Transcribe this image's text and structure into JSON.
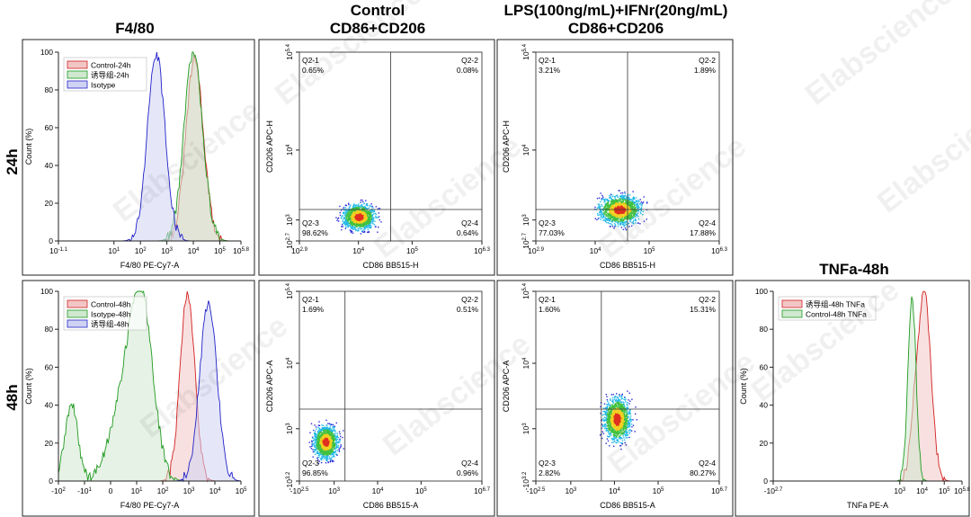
{
  "column_titles": {
    "f480": "F4/80",
    "control_l1": "Control",
    "control_l2": "CD86+CD206",
    "lps_l1": "LPS(100ng/mL)+IFNr(20ng/mL)",
    "lps_l2": "CD86+CD206",
    "tnfa": "TNFa-48h"
  },
  "row_labels": {
    "r24": "24h",
    "r48": "48h"
  },
  "watermark": "Elabscience",
  "colors": {
    "red": "#d22020",
    "green": "#1f9a1f",
    "blue": "#2222c8",
    "red_fill": "#f3c6c6",
    "green_fill": "#cfe8cf",
    "blue_fill": "#cfd3f3"
  },
  "chart_data": [
    {
      "id": "hist24",
      "type": "area",
      "title": "F4/80",
      "xlabel": "F4/80 PE-Cy7-A",
      "ylabel": "Count (%)",
      "ylim": [
        0,
        100
      ],
      "yticks": [
        "0",
        "20",
        "40",
        "60",
        "80",
        "100"
      ],
      "xticks": [
        {
          "b": "10",
          "e": "-1.1",
          "v": -1.1
        },
        {
          "b": "10",
          "e": "1",
          "v": 1
        },
        {
          "b": "10",
          "e": "2",
          "v": 2
        },
        {
          "b": "10",
          "e": "3",
          "v": 3
        },
        {
          "b": "10",
          "e": "4",
          "v": 4
        },
        {
          "b": "10",
          "e": "5",
          "v": 5
        },
        {
          "b": "10",
          "e": "5.8",
          "v": 5.8
        }
      ],
      "xlim": [
        -1.1,
        5.8
      ],
      "legend": [
        {
          "name": "Control-24h",
          "color": "red"
        },
        {
          "name": "诱导组-24h",
          "color": "green"
        },
        {
          "name": "Isotype",
          "color": "blue"
        }
      ],
      "series": [
        {
          "color": "red",
          "peak_x": 4.05,
          "peak_y": 96,
          "width": 0.33
        },
        {
          "color": "green",
          "peak_x": 4.0,
          "peak_y": 100,
          "width": 0.35
        },
        {
          "color": "blue",
          "peak_x": 2.6,
          "peak_y": 99,
          "width": 0.33
        }
      ]
    },
    {
      "id": "dot24c",
      "type": "scatter",
      "xlabel": "CD86 BB515-H",
      "ylabel": "CD206 APC-H",
      "xlim": [
        2.9,
        6.3
      ],
      "ylim": [
        2.7,
        5.4
      ],
      "gate": {
        "x": 4.6,
        "y": 3.15
      },
      "quadrants": {
        "q1": {
          "name": "Q2-1",
          "pct": "0.65%"
        },
        "q2": {
          "name": "Q2-2",
          "pct": "0.08%"
        },
        "q3": {
          "name": "Q2-3",
          "pct": "98.62%"
        },
        "q4": {
          "name": "Q2-4",
          "pct": "0.64%"
        }
      },
      "xticks": [
        {
          "b": "10",
          "e": "2.9",
          "v": 2.9
        },
        {
          "b": "10",
          "e": "4",
          "v": 4
        },
        {
          "b": "10",
          "e": "5",
          "v": 5
        },
        {
          "b": "10",
          "e": "6.3",
          "v": 6.3
        }
      ],
      "yticks": [
        {
          "b": "10",
          "e": "2.7",
          "v": 2.7
        },
        {
          "b": "10",
          "e": "3",
          "v": 3
        },
        {
          "b": "10",
          "e": "4",
          "v": 4
        },
        {
          "b": "10",
          "e": "5.4",
          "v": 5.4
        }
      ],
      "cluster": {
        "cx": 4.0,
        "cy": 3.05,
        "sx": 0.22,
        "sy": 0.13
      }
    },
    {
      "id": "dot24l",
      "type": "scatter",
      "xlabel": "CD86 BB515-H",
      "ylabel": "CD206 APC-H",
      "xlim": [
        2.9,
        6.3
      ],
      "ylim": [
        2.7,
        5.4
      ],
      "gate": {
        "x": 4.6,
        "y": 3.15
      },
      "quadrants": {
        "q1": {
          "name": "Q2-1",
          "pct": "3.21%"
        },
        "q2": {
          "name": "Q2-2",
          "pct": "1.89%"
        },
        "q3": {
          "name": "Q2-3",
          "pct": "77.03%"
        },
        "q4": {
          "name": "Q2-4",
          "pct": "17.88%"
        }
      },
      "xticks": [
        {
          "b": "10",
          "e": "2.9",
          "v": 2.9
        },
        {
          "b": "10",
          "e": "4",
          "v": 4
        },
        {
          "b": "10",
          "e": "5",
          "v": 5
        },
        {
          "b": "10",
          "e": "6.3",
          "v": 6.3
        }
      ],
      "yticks": [
        {
          "b": "10",
          "e": "2.7",
          "v": 2.7
        },
        {
          "b": "10",
          "e": "3",
          "v": 3
        },
        {
          "b": "10",
          "e": "4",
          "v": 4
        },
        {
          "b": "10",
          "e": "5.4",
          "v": 5.4
        }
      ],
      "cluster": {
        "cx": 4.45,
        "cy": 3.15,
        "sx": 0.28,
        "sy": 0.15
      }
    },
    {
      "id": "hist48",
      "type": "area",
      "xlabel": "F4/80 PE-Cy7-A",
      "ylabel": "Count (%)",
      "ylim": [
        0,
        100
      ],
      "yticks": [
        "0",
        "20",
        "40",
        "60",
        "80",
        "100"
      ],
      "xticks": [
        {
          "b": "-10",
          "e": "2",
          "v": -2
        },
        {
          "b": "-10",
          "e": "1",
          "v": -1
        },
        {
          "b": "0",
          "e": "",
          "v": 0
        },
        {
          "b": "10",
          "e": "1",
          "v": 1
        },
        {
          "b": "10",
          "e": "2",
          "v": 2
        },
        {
          "b": "10",
          "e": "3",
          "v": 3
        },
        {
          "b": "10",
          "e": "4",
          "v": 4
        },
        {
          "b": "10",
          "e": "5",
          "v": 5
        }
      ],
      "xlim": [
        -2,
        5
      ],
      "legend": [
        {
          "name": "Control-48h",
          "color": "red"
        },
        {
          "name": "Isotype-48h",
          "color": "green"
        },
        {
          "name": "诱导组-48h",
          "color": "blue"
        }
      ],
      "series": [
        {
          "color": "red",
          "peak_x": 2.95,
          "peak_y": 99,
          "width": 0.28
        },
        {
          "color": "green",
          "peak_x": 1.15,
          "peak_y": 100,
          "width": 0.45
        },
        {
          "color": "blue",
          "peak_x": 3.75,
          "peak_y": 94,
          "width": 0.33
        }
      ]
    },
    {
      "id": "dot48c",
      "type": "scatter",
      "xlabel": "CD86 BB515-A",
      "ylabel": "CD206 APC-A",
      "xlim": [
        2.5,
        6.7
      ],
      "ylim": [
        2.5,
        5.4
      ],
      "gate": {
        "x": 3.55,
        "y": 3.6
      },
      "quadrants": {
        "q1": {
          "name": "Q2-1",
          "pct": "1.69%"
        },
        "q2": {
          "name": "Q2-2",
          "pct": "0.51%"
        },
        "q3": {
          "name": "Q2-3",
          "pct": "96.85%"
        },
        "q4": {
          "name": "Q2-4",
          "pct": "0.96%"
        }
      },
      "xticks": [
        {
          "b": "-10",
          "e": "2.5",
          "v": 2.5
        },
        {
          "b": "10",
          "e": "3",
          "v": 3.3
        },
        {
          "b": "10",
          "e": "4",
          "v": 4.3
        },
        {
          "b": "10",
          "e": "5",
          "v": 5.3
        },
        {
          "b": "10",
          "e": "6.7",
          "v": 6.7
        }
      ],
      "yticks": [
        {
          "b": "-10",
          "e": "3.2",
          "v": 2.5
        },
        {
          "b": "10",
          "e": "3",
          "v": 3.3
        },
        {
          "b": "10",
          "e": "4",
          "v": 4.3
        },
        {
          "b": "10",
          "e": "5.4",
          "v": 5.4
        }
      ],
      "cluster": {
        "cx": 3.1,
        "cy": 3.1,
        "sx": 0.2,
        "sy": 0.18
      }
    },
    {
      "id": "dot48l",
      "type": "scatter",
      "xlabel": "CD86 BB515-A",
      "ylabel": "CD206 APC-A",
      "xlim": [
        2.5,
        6.7
      ],
      "ylim": [
        2.5,
        5.4
      ],
      "gate": {
        "x": 4.0,
        "y": 3.6
      },
      "quadrants": {
        "q1": {
          "name": "Q2-1",
          "pct": "1.60%"
        },
        "q2": {
          "name": "Q2-2",
          "pct": "15.31%"
        },
        "q3": {
          "name": "Q2-3",
          "pct": "2.82%"
        },
        "q4": {
          "name": "Q2-4",
          "pct": "80.27%"
        }
      },
      "xticks": [
        {
          "b": "-10",
          "e": "2.5",
          "v": 2.5
        },
        {
          "b": "10",
          "e": "3",
          "v": 3.3
        },
        {
          "b": "10",
          "e": "4",
          "v": 4.3
        },
        {
          "b": "10",
          "e": "5",
          "v": 5.3
        },
        {
          "b": "10",
          "e": "6.7",
          "v": 6.7
        }
      ],
      "yticks": [
        {
          "b": "-10",
          "e": "3.2",
          "v": 2.5
        },
        {
          "b": "10",
          "e": "3",
          "v": 3.3
        },
        {
          "b": "10",
          "e": "4",
          "v": 4.3
        },
        {
          "b": "10",
          "e": "5.4",
          "v": 5.4
        }
      ],
      "cluster": {
        "cx": 4.35,
        "cy": 3.45,
        "sx": 0.22,
        "sy": 0.24
      }
    },
    {
      "id": "hist_tnfa",
      "type": "area",
      "title": "TNFa-48h",
      "xlabel": "TNFa PE-A",
      "ylabel": "Count (%)",
      "ylim": [
        0,
        100
      ],
      "yticks": [
        "0",
        "20",
        "40",
        "60",
        "80",
        "100"
      ],
      "xticks": [
        {
          "b": "-10",
          "e": "2.7",
          "v": -2.7
        },
        {
          "b": "10",
          "e": "3",
          "v": 3
        },
        {
          "b": "10",
          "e": "4",
          "v": 4
        },
        {
          "b": "10",
          "e": "5",
          "v": 5
        },
        {
          "b": "10",
          "e": "5.8",
          "v": 5.8
        }
      ],
      "xlim": [
        -2.7,
        5.8
      ],
      "legend": [
        {
          "name": "诱导组-48h TNFa",
          "color": "red"
        },
        {
          "name": "Control-48h TNFa",
          "color": "green"
        }
      ],
      "series": [
        {
          "color": "red",
          "peak_x": 4.1,
          "peak_y": 100,
          "width": 0.3
        },
        {
          "color": "green",
          "peak_x": 3.55,
          "peak_y": 97,
          "width": 0.18
        }
      ]
    }
  ]
}
